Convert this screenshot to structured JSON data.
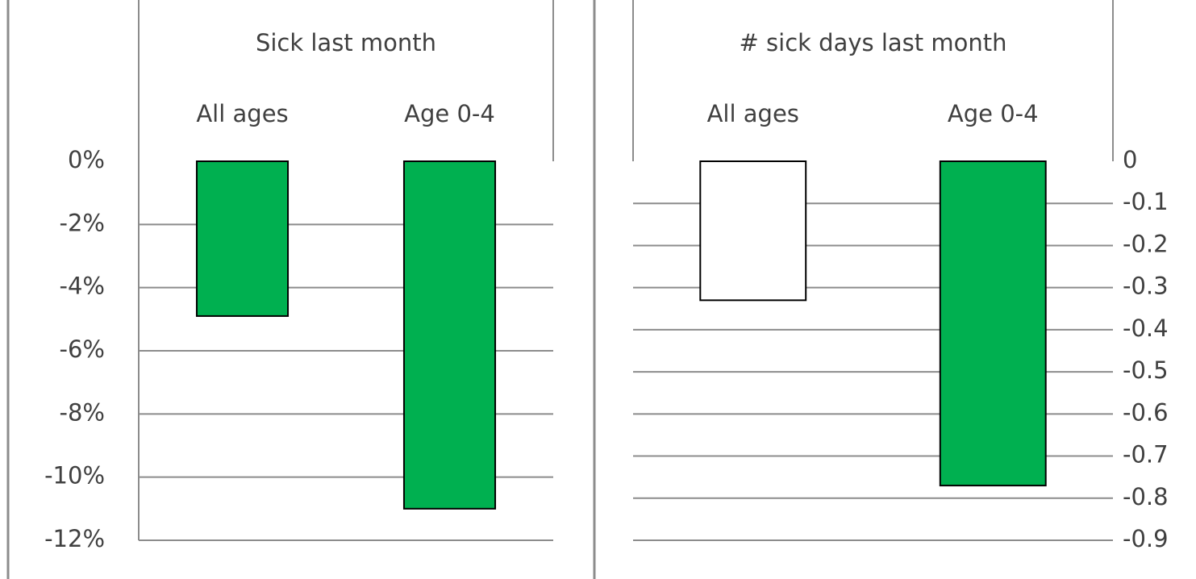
{
  "chart_data": [
    {
      "type": "bar",
      "title": "Sick last month",
      "categories": [
        "All ages",
        "Age 0-4"
      ],
      "values": [
        -4.9,
        -11.0
      ],
      "colors": [
        "#00b050",
        "#00b050"
      ],
      "ylim": [
        -12,
        0
      ],
      "yaxis_position": "left",
      "yticks": [
        {
          "value": 0,
          "label": "0%"
        },
        {
          "value": -2,
          "label": "-2%"
        },
        {
          "value": -4,
          "label": "-4%"
        },
        {
          "value": -6,
          "label": "-6%"
        },
        {
          "value": -8,
          "label": "-8%"
        },
        {
          "value": -10,
          "label": "-10%"
        },
        {
          "value": -12,
          "label": "-12%"
        }
      ],
      "grid": true
    },
    {
      "type": "bar",
      "title": "# sick days last month",
      "categories": [
        "All ages",
        "Age 0-4"
      ],
      "values": [
        -0.33,
        -0.77
      ],
      "colors": [
        "#ffffff",
        "#00b050"
      ],
      "ylim": [
        -0.9,
        0
      ],
      "yaxis_position": "right",
      "yticks": [
        0,
        -0.1,
        -0.2,
        -0.3,
        -0.4,
        -0.5,
        -0.6,
        -0.7,
        -0.8,
        -0.9
      ],
      "grid": true
    }
  ]
}
